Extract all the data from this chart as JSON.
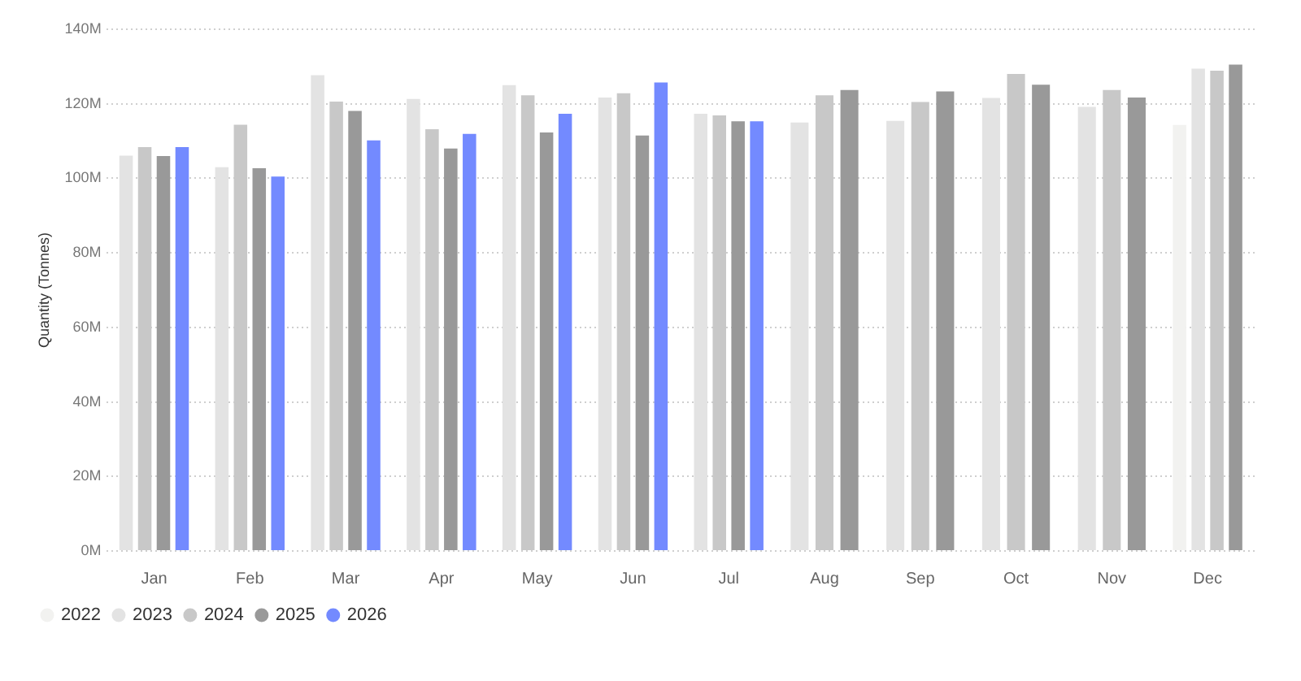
{
  "chart_data": {
    "type": "bar",
    "ylabel": "Quantity (Tonnes)",
    "categories": [
      "Jan",
      "Feb",
      "Mar",
      "Apr",
      "May",
      "Jun",
      "Jul",
      "Aug",
      "Sep",
      "Oct",
      "Nov",
      "Dec"
    ],
    "series": [
      {
        "name": "2022",
        "color": "#f2f2f0",
        "values": [
          null,
          null,
          null,
          null,
          null,
          null,
          null,
          null,
          null,
          null,
          null,
          114.3
        ]
      },
      {
        "name": "2023",
        "color": "#e3e3e3",
        "values": [
          106.1,
          103.0,
          127.7,
          121.3,
          125.0,
          121.7,
          117.3,
          115.0,
          115.4,
          121.6,
          119.2,
          129.4
        ]
      },
      {
        "name": "2024",
        "color": "#c8c8c8",
        "values": [
          108.4,
          114.4,
          120.6,
          113.2,
          122.3,
          122.8,
          116.9,
          122.3,
          120.5,
          128.0,
          123.7,
          128.9
        ]
      },
      {
        "name": "2025",
        "color": "#999999",
        "values": [
          106.0,
          102.7,
          118.1,
          108.0,
          112.3,
          111.5,
          115.3,
          123.7,
          123.3,
          125.1,
          121.7,
          130.5
        ]
      },
      {
        "name": "2026",
        "color": "#738aff",
        "values": [
          108.4,
          100.5,
          110.2,
          111.9,
          117.3,
          125.7,
          115.3,
          null,
          null,
          null,
          null,
          null
        ]
      }
    ],
    "ylim": [
      0,
      140
    ],
    "yticks": [
      {
        "value": 0,
        "label": "0M"
      },
      {
        "value": 20,
        "label": "20M"
      },
      {
        "value": 40,
        "label": "40M"
      },
      {
        "value": 60,
        "label": "60M"
      },
      {
        "value": 80,
        "label": "80M"
      },
      {
        "value": 100,
        "label": "100M"
      },
      {
        "value": 120,
        "label": "120M"
      },
      {
        "value": 140,
        "label": "140M"
      }
    ],
    "grid": "y",
    "legend": "bottom left"
  }
}
